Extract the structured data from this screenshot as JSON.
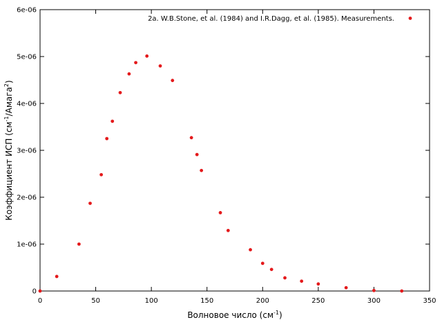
{
  "chart_data": {
    "type": "scatter",
    "xlabel": {
      "main": "Волновое число (см",
      "sup": "-1",
      "tail": ")"
    },
    "ylabel": {
      "main": "Коэффициент ИСП (см",
      "sup1": "-1",
      "mid": "/Амага",
      "sup2": "2",
      "tail": ")"
    },
    "xlim": [
      0,
      350
    ],
    "ylim": [
      0,
      6e-06
    ],
    "xticks": [
      0,
      50,
      100,
      150,
      200,
      250,
      300,
      350
    ],
    "xtick_labels": [
      "0",
      "50",
      "100",
      "150",
      "200",
      "250",
      "300",
      "350"
    ],
    "yticks": [
      0,
      1e-06,
      2e-06,
      3e-06,
      4e-06,
      5e-06,
      6e-06
    ],
    "ytick_labels": [
      "0",
      "1e-06",
      "2e-06",
      "3e-06",
      "4e-06",
      "5e-06",
      "6e-06"
    ],
    "grid": false,
    "legend_position": "top-right",
    "series": [
      {
        "name": "2a. W.B.Stone, et al. (1984) and I.R.Dagg, et al. (1985). Measurements.",
        "color": "#e41a1c",
        "points": [
          [
            0,
            0.0
          ],
          [
            15,
            3.1e-07
          ],
          [
            35,
            1e-06
          ],
          [
            45,
            1.87e-06
          ],
          [
            55,
            2.48e-06
          ],
          [
            60,
            3.25e-06
          ],
          [
            65,
            3.62e-06
          ],
          [
            72,
            4.23e-06
          ],
          [
            80,
            4.63e-06
          ],
          [
            86,
            4.87e-06
          ],
          [
            96,
            5.01e-06
          ],
          [
            108,
            4.8e-06
          ],
          [
            119,
            4.49e-06
          ],
          [
            136,
            3.27e-06
          ],
          [
            141,
            2.91e-06
          ],
          [
            145,
            2.57e-06
          ],
          [
            162,
            1.67e-06
          ],
          [
            169,
            1.29e-06
          ],
          [
            189,
            8.8e-07
          ],
          [
            200,
            5.9e-07
          ],
          [
            208,
            4.6e-07
          ],
          [
            220,
            2.8e-07
          ],
          [
            235,
            2.1e-07
          ],
          [
            250,
            1.5e-07
          ],
          [
            275,
            7e-08
          ],
          [
            300,
            1e-08
          ],
          [
            325,
            0.0
          ]
        ]
      }
    ]
  }
}
